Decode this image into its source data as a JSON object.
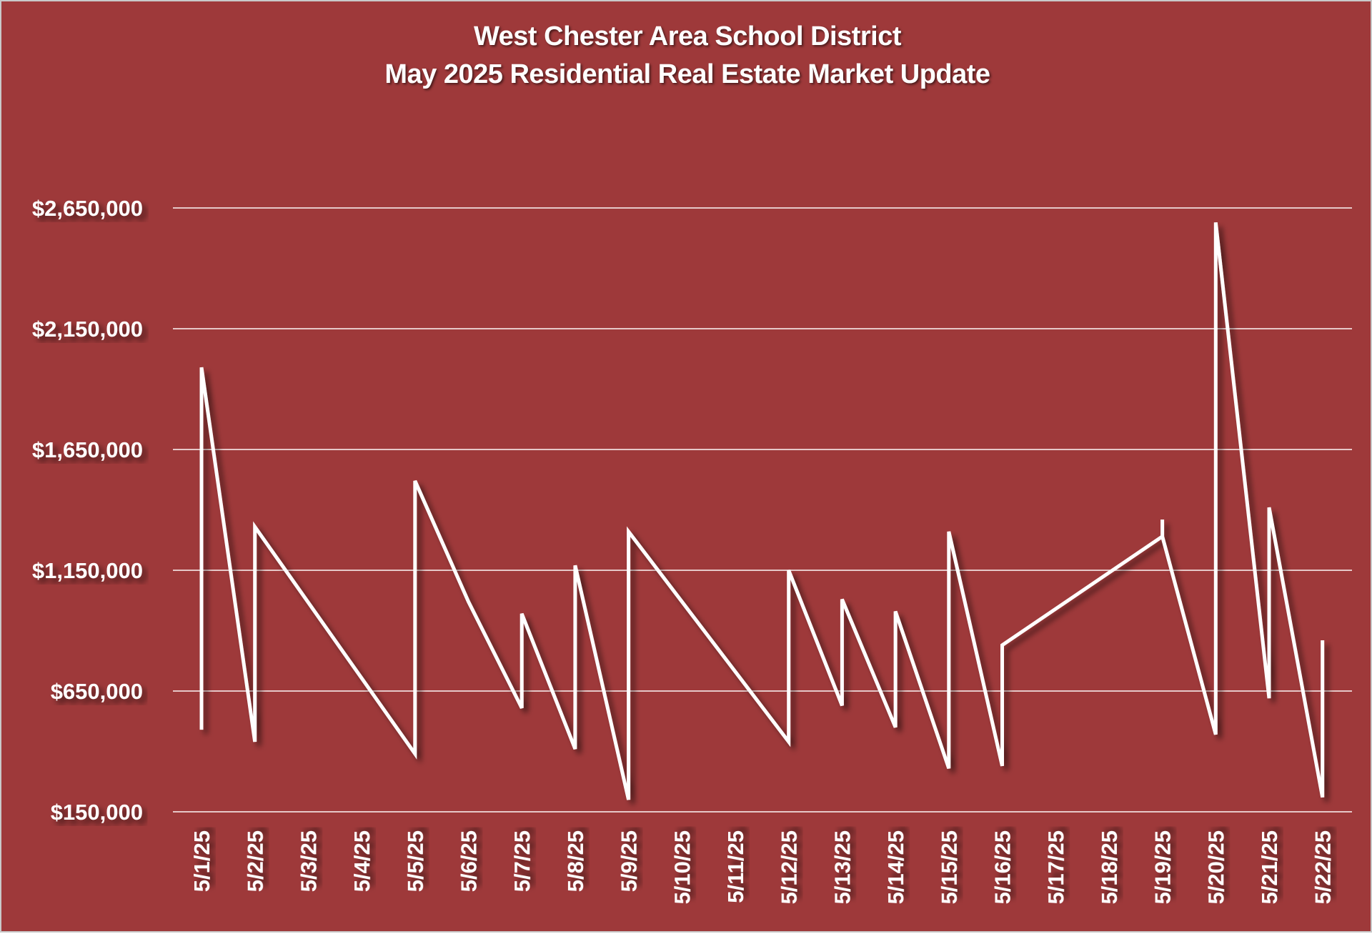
{
  "chart_data": {
    "type": "line",
    "title": "West Chester Area School District",
    "subtitle": "May 2025 Residential Real Estate Market Update",
    "xlabel": "",
    "ylabel": "",
    "ylim": [
      150000,
      2650000
    ],
    "y_ticks": [
      "$150,000",
      "$650,000",
      "$1,150,000",
      "$1,650,000",
      "$2,150,000",
      "$2,650,000"
    ],
    "y_tick_values": [
      150000,
      650000,
      1150000,
      1650000,
      2150000,
      2650000
    ],
    "categories": [
      "5/1/25",
      "5/2/25",
      "5/3/25",
      "5/4/25",
      "5/5/25",
      "5/6/25",
      "5/7/25",
      "5/8/25",
      "5/9/25",
      "5/10/25",
      "5/11/25",
      "5/12/25",
      "5/13/25",
      "5/14/25",
      "5/15/25",
      "5/16/25",
      "5/17/25",
      "5/18/25",
      "5/19/25",
      "5/20/25",
      "5/21/25",
      "5/22/25"
    ],
    "grid": true,
    "legend": "none",
    "line_color": "#ffffff",
    "background_color": "#9e393a",
    "series": [
      {
        "points": [
          {
            "x": "5/1/25",
            "y": 490000
          },
          {
            "x": "5/1/25",
            "y": 1990000
          },
          {
            "x": "5/2/25",
            "y": 440000
          },
          {
            "x": "5/2/25",
            "y": 1330000
          },
          {
            "x": "5/5/25",
            "y": 390000
          },
          {
            "x": "5/5/25",
            "y": 1520000
          },
          {
            "x": "5/6/25",
            "y": 1020000
          },
          {
            "x": "5/7/25",
            "y": 580000
          },
          {
            "x": "5/7/25",
            "y": 970000
          },
          {
            "x": "5/8/25",
            "y": 410000
          },
          {
            "x": "5/8/25",
            "y": 1170000
          },
          {
            "x": "5/9/25",
            "y": 200000
          },
          {
            "x": "5/9/25",
            "y": 1310000
          },
          {
            "x": "5/12/25",
            "y": 440000
          },
          {
            "x": "5/12/25",
            "y": 1150000
          },
          {
            "x": "5/13/25",
            "y": 590000
          },
          {
            "x": "5/13/25",
            "y": 1030000
          },
          {
            "x": "5/14/25",
            "y": 500000
          },
          {
            "x": "5/14/25",
            "y": 980000
          },
          {
            "x": "5/15/25",
            "y": 330000
          },
          {
            "x": "5/15/25",
            "y": 1310000
          },
          {
            "x": "5/16/25",
            "y": 340000
          },
          {
            "x": "5/16/25",
            "y": 840000
          },
          {
            "x": "5/19/25",
            "y": 1290000
          },
          {
            "x": "5/19/25",
            "y": 1360000
          },
          {
            "x": "5/19/25",
            "y": 1290000
          },
          {
            "x": "5/20/25",
            "y": 470000
          },
          {
            "x": "5/20/25",
            "y": 2590000
          },
          {
            "x": "5/21/25",
            "y": 620000
          },
          {
            "x": "5/21/25",
            "y": 1410000
          },
          {
            "x": "5/22/25",
            "y": 210000
          },
          {
            "x": "5/22/25",
            "y": 860000
          }
        ]
      }
    ]
  }
}
